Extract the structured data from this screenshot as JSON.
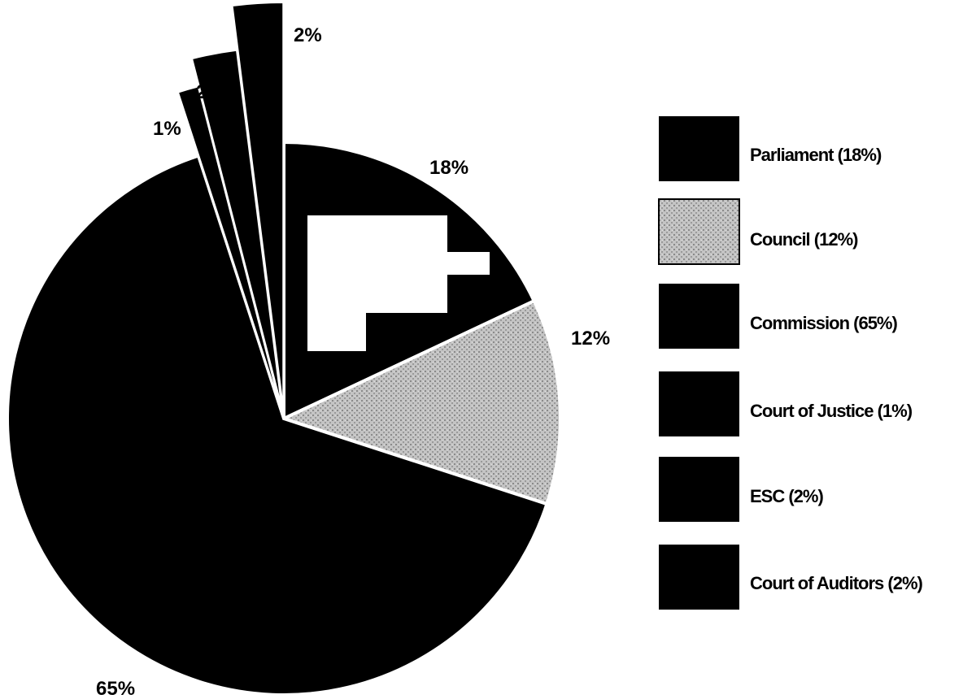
{
  "chart_data": {
    "type": "pie",
    "title": "",
    "categories": [
      "Parliament",
      "Council",
      "Commission",
      "Court of Justice",
      "ESC",
      "Court of Auditors"
    ],
    "values": [
      18,
      12,
      65,
      1,
      2,
      2
    ],
    "slices": [
      {
        "name": "Parliament",
        "value": 18,
        "pct_label": "18%",
        "legend_label": "Parliament (18%)",
        "color": "#000000",
        "exploded": false
      },
      {
        "name": "Council",
        "value": 12,
        "pct_label": "12%",
        "legend_label": "Council (12%)",
        "color": "#b3b3b3",
        "exploded": false
      },
      {
        "name": "Commission",
        "value": 65,
        "pct_label": "65%",
        "legend_label": "Commission (65%)",
        "color": "#000000",
        "exploded": false
      },
      {
        "name": "Court of Justice",
        "value": 1,
        "pct_label": "1%",
        "legend_label": "Court of Justice (1%)",
        "color": "#000000",
        "exploded": true
      },
      {
        "name": "ESC",
        "value": 2,
        "pct_label": "2%",
        "legend_label": "ESC (2%)",
        "color": "#000000",
        "exploded": true
      },
      {
        "name": "Court of Auditors",
        "value": 2,
        "pct_label": "2%",
        "legend_label": "Court of Auditors (2%)",
        "color": "#000000",
        "exploded": true
      }
    ],
    "legend_position": "right",
    "grid": false
  }
}
